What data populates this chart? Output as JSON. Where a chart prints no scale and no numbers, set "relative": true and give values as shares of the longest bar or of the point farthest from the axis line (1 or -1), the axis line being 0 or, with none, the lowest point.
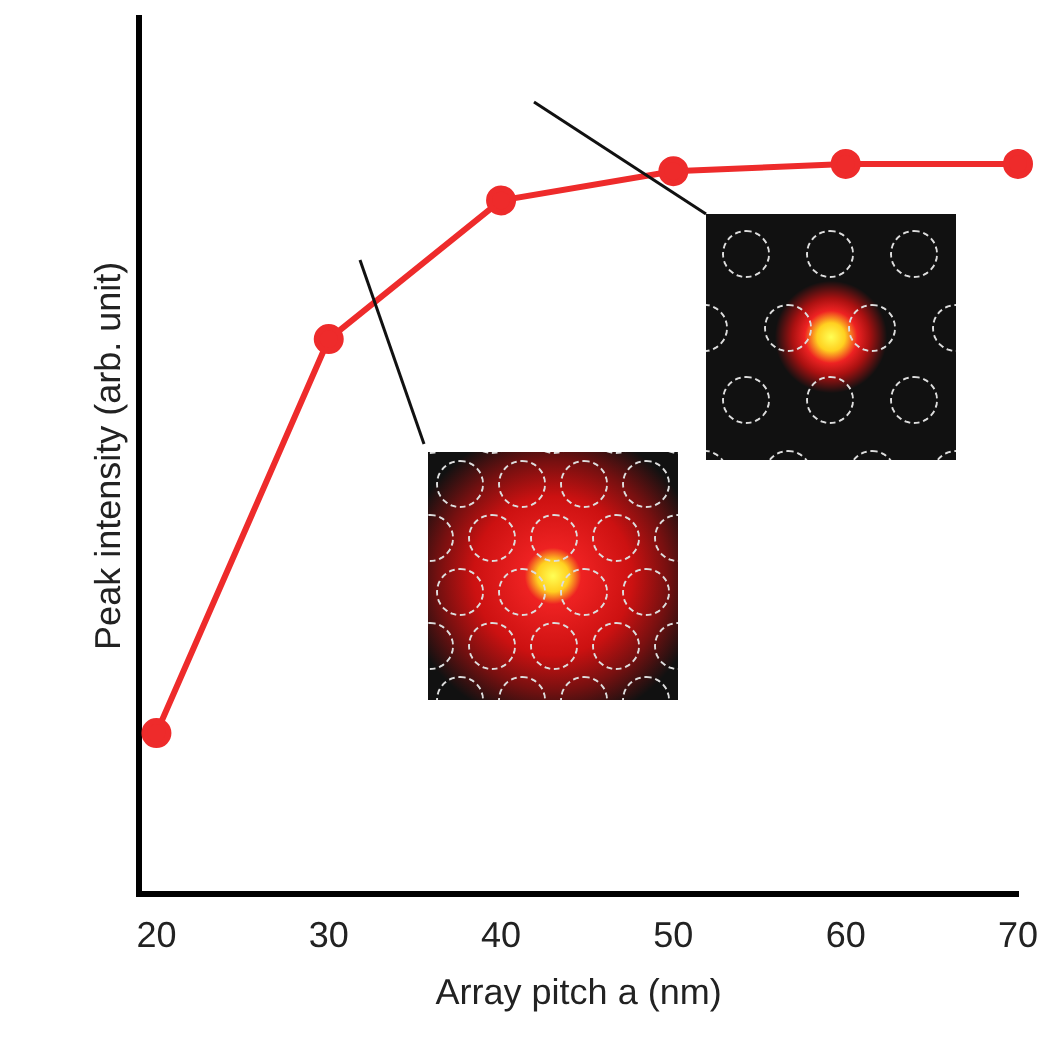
{
  "chart_data": {
    "type": "line",
    "xlabel": "Array pitch a (nm)",
    "ylabel": "Peak intensity (arb. unit)",
    "relative": true,
    "x": [
      20,
      30,
      40,
      50,
      60,
      70
    ],
    "series": [
      {
        "color": "#ee2b2b",
        "values": [
          0.22,
          0.76,
          0.95,
          0.99,
          1,
          1
        ]
      }
    ],
    "xlim": [
      19,
      70
    ],
    "xticks": [
      20,
      30,
      40,
      50,
      60,
      70
    ],
    "marker": "circle",
    "line_style": "solid",
    "grid": false,
    "legend": false
  }
}
